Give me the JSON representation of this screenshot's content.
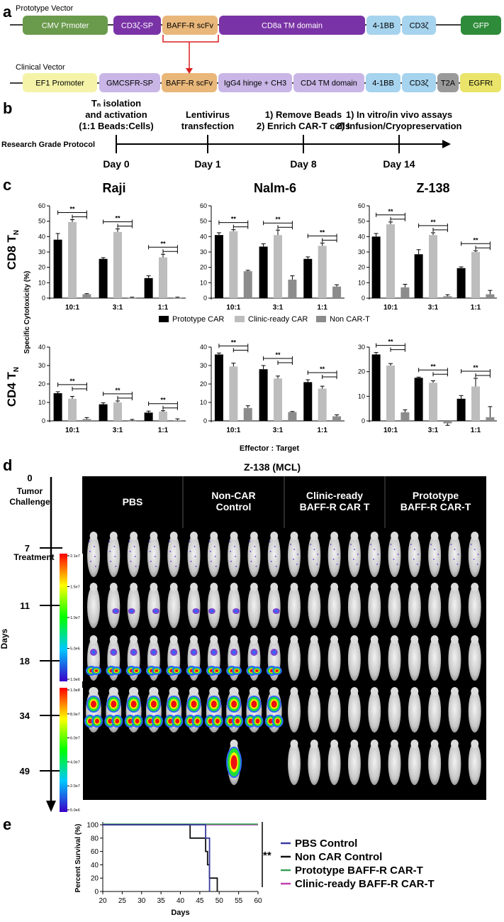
{
  "panel_a": {
    "letter": "a",
    "proto_label": "Prototype Vector",
    "clin_label": "Clinical Vector",
    "proto_segments": [
      {
        "label": "CMV Prmoter",
        "color": "#6a9a4c"
      },
      {
        "label": "CD3ζ-SP",
        "color": "#7a33a6"
      },
      {
        "label": "BAFF-R scFv",
        "color": "#e9b77a"
      },
      {
        "label": "CD8a TM domain",
        "color": "#7a33a6"
      },
      {
        "label": "4-1BB",
        "color": "#a6d3ee"
      },
      {
        "label": "CD3ζ",
        "color": "#a6d3ee"
      },
      {
        "label": "GFP",
        "color": "#2e8b3a"
      }
    ],
    "clin_segments": [
      {
        "label": "EF1 Promoter",
        "color": "#f4f3a8"
      },
      {
        "label": "GMCSFR-SP",
        "color": "#c9b6e6"
      },
      {
        "label": "BAFF-R scFv",
        "color": "#e9b77a"
      },
      {
        "label": "IgG4 hinge + CH3",
        "color": "#c9b6e6"
      },
      {
        "label": "CD4 TM domain",
        "color": "#c9b6e6"
      },
      {
        "label": "4-1BB",
        "color": "#a6d3ee"
      },
      {
        "label": "CD3ζ",
        "color": "#a6d3ee"
      },
      {
        "label": "T2A",
        "color": "#9a9a9a"
      },
      {
        "label": "EGFRt",
        "color": "#eae46a"
      }
    ]
  },
  "panel_b": {
    "letter": "b",
    "protocol_label": "Research Grade Protocol",
    "steps": [
      {
        "day": "Day 0",
        "lines": [
          "Tₙ isolation",
          "and activation",
          "(1:1 Beads:Cells)"
        ]
      },
      {
        "day": "Day 1",
        "lines": [
          "Lentivirus",
          "transfection"
        ]
      },
      {
        "day": "Day 8",
        "lines": [
          "1) Remove Beads",
          "2) Enrich CAR-T cells"
        ]
      },
      {
        "day": "Day 14",
        "lines": [
          "1) In vitro/in vivo assays",
          "2) Infusion/Cryopreservation"
        ]
      }
    ]
  },
  "panel_c": {
    "letter": "c",
    "ylabel": "Specific Cytotoxicity (%)",
    "xlabel": "Effector : Target",
    "row_labels": [
      "CD8 T",
      "CD4 T"
    ],
    "row_label_sub": "N",
    "col_titles": [
      "Raji",
      "Nalm-6",
      "Z-138"
    ],
    "sig_label": "**",
    "legend": [
      {
        "name": "Prototype CAR",
        "color": "#000000"
      },
      {
        "name": "Clinic-ready CAR",
        "color": "#bdbdbd"
      },
      {
        "name": "Non CAR-T",
        "color": "#8c8c8c"
      }
    ]
  },
  "chart_data": [
    {
      "type": "bar",
      "title": "Raji",
      "row": "CD8 TN",
      "categories": [
        "10:1",
        "3:1",
        "1:1"
      ],
      "ylim": [
        0,
        60
      ],
      "yticks": [
        0,
        10,
        20,
        30,
        40,
        50,
        60
      ],
      "series": [
        {
          "name": "Prototype CAR",
          "values": [
            38,
            25.5,
            13
          ],
          "err": [
            4,
            0.8,
            1.5
          ]
        },
        {
          "name": "Clinic-ready CAR",
          "values": [
            49.5,
            43,
            26.5
          ],
          "err": [
            1.5,
            2,
            2
          ]
        },
        {
          "name": "Non CAR-T",
          "values": [
            2.5,
            0.3,
            0.3
          ],
          "err": [
            0.4,
            0.3,
            0.3
          ]
        }
      ]
    },
    {
      "type": "bar",
      "title": "Nalm-6",
      "row": "CD8 TN",
      "categories": [
        "10:1",
        "3:1",
        "1:1"
      ],
      "ylim": [
        0,
        60
      ],
      "yticks": [
        0,
        10,
        20,
        30,
        40,
        50,
        60
      ],
      "series": [
        {
          "name": "Prototype CAR",
          "values": [
            41,
            33.5,
            25.5
          ],
          "err": [
            1.5,
            1.8,
            1.3
          ]
        },
        {
          "name": "Clinic-ready CAR",
          "values": [
            43.5,
            41,
            34
          ],
          "err": [
            1,
            3.2,
            1.8
          ]
        },
        {
          "name": "Non CAR-T",
          "values": [
            17.5,
            12,
            7.5
          ],
          "err": [
            0.6,
            2.5,
            1.2
          ]
        }
      ]
    },
    {
      "type": "bar",
      "title": "Z-138",
      "row": "CD8 TN",
      "categories": [
        "10:1",
        "3:1",
        "1:1"
      ],
      "ylim": [
        0,
        60
      ],
      "yticks": [
        0,
        10,
        20,
        30,
        40,
        50,
        60
      ],
      "series": [
        {
          "name": "Prototype CAR",
          "values": [
            40,
            28.5,
            19.5
          ],
          "err": [
            2,
            3,
            0.8
          ]
        },
        {
          "name": "Clinic-ready CAR",
          "values": [
            48,
            41,
            30
          ],
          "err": [
            1.5,
            1.5,
            0.8
          ]
        },
        {
          "name": "Non CAR-T",
          "values": [
            7,
            1.2,
            2.5
          ],
          "err": [
            2,
            1,
            2.5
          ]
        }
      ]
    },
    {
      "type": "bar",
      "title": "Raji",
      "row": "CD4 TN",
      "categories": [
        "10:1",
        "3:1",
        "1:1"
      ],
      "ylim": [
        0,
        40
      ],
      "yticks": [
        0,
        10,
        20,
        30,
        40
      ],
      "series": [
        {
          "name": "Prototype CAR",
          "values": [
            15,
            9,
            4.5
          ],
          "err": [
            0.8,
            0.8,
            0.8
          ]
        },
        {
          "name": "Clinic-ready CAR",
          "values": [
            12,
            10,
            5
          ],
          "err": [
            1.3,
            0.8,
            0.5
          ]
        },
        {
          "name": "Non CAR-T",
          "values": [
            1,
            0,
            0.3
          ],
          "err": [
            0.8,
            0.8,
            0.8
          ]
        }
      ]
    },
    {
      "type": "bar",
      "title": "Nalm-6",
      "row": "CD4 TN",
      "categories": [
        "10:1",
        "3:1",
        "1:1"
      ],
      "ylim": [
        0,
        40
      ],
      "yticks": [
        0,
        10,
        20,
        30,
        40
      ],
      "series": [
        {
          "name": "Prototype CAR",
          "values": [
            36,
            28,
            21
          ],
          "err": [
            0.8,
            2,
            1.3
          ]
        },
        {
          "name": "Clinic-ready CAR",
          "values": [
            29.5,
            23,
            17.5
          ],
          "err": [
            1.8,
            1.3,
            1.3
          ]
        },
        {
          "name": "Non CAR-T",
          "values": [
            7,
            4.8,
            2.5
          ],
          "err": [
            1.2,
            0.3,
            0.8
          ]
        }
      ]
    },
    {
      "type": "bar",
      "title": "Z-138",
      "row": "CD4 TN",
      "categories": [
        "10:1",
        "3:1",
        "1:1"
      ],
      "ylim": [
        0,
        30
      ],
      "yticks": [
        0,
        10,
        20,
        30
      ],
      "series": [
        {
          "name": "Prototype CAR",
          "values": [
            27,
            17.5,
            9
          ],
          "err": [
            0.8,
            0.3,
            1.3
          ]
        },
        {
          "name": "Clinic-ready CAR",
          "values": [
            22.5,
            15.5,
            14
          ],
          "err": [
            0.8,
            0.8,
            3.3
          ]
        },
        {
          "name": "Non CAR-T",
          "values": [
            3.5,
            -1,
            1.5
          ],
          "err": [
            1,
            0.8,
            4.3
          ]
        }
      ]
    },
    {
      "type": "line",
      "title": "",
      "xlabel": "Days",
      "ylabel": "Percent Survival (%)",
      "xlim": [
        20,
        60
      ],
      "ylim": [
        0,
        100
      ],
      "xticks": [
        20,
        25,
        30,
        35,
        40,
        45,
        50,
        55,
        60
      ],
      "yticks": [
        0,
        20,
        40,
        60,
        80,
        100
      ],
      "series": [
        {
          "name": "PBS Control",
          "color": "#3a3aa0",
          "x": [
            20,
            46.5,
            46.5,
            47.5,
            47.5
          ],
          "y": [
            100,
            100,
            80,
            80,
            0
          ]
        },
        {
          "name": "Non CAR Control",
          "color": "#111111",
          "x": [
            20,
            42.5,
            42.5,
            46.5,
            46.5,
            47,
            47,
            47.5,
            47.5,
            49.5,
            49.5
          ],
          "y": [
            100,
            100,
            80,
            80,
            60,
            60,
            40,
            40,
            20,
            20,
            0
          ]
        },
        {
          "name": "Prototype BAFF-R CAR-T",
          "color": "#3aa05a",
          "x": [
            20,
            60
          ],
          "y": [
            101,
            101
          ]
        },
        {
          "name": "Clinic-ready BAFF-R CAR-T",
          "color": "#c040b0",
          "x": [
            20,
            60
          ],
          "y": [
            100,
            100
          ]
        }
      ]
    }
  ],
  "panel_d": {
    "letter": "d",
    "title": "Z-138 (MCL)",
    "group_headers": [
      [
        "PBS"
      ],
      [
        "Non-CAR",
        "Control"
      ],
      [
        "Clinic-ready",
        "BAFF-R CAR T"
      ],
      [
        "Prototype",
        "BAFF-R CAR-T"
      ]
    ],
    "timeline_days": [
      "0",
      "7",
      "11",
      "18",
      "34",
      "49"
    ],
    "timeline_notes": {
      "0": [
        "Tumor",
        "Challenge"
      ],
      "7": [
        "Treatment"
      ]
    },
    "axis_label": "Days",
    "scale1_ticks": [
      "2.1e7",
      "1.5e7",
      "1.0e7",
      "5.0e6",
      "1.0e6"
    ],
    "scale2_ticks": [
      "1.0e8",
      "8.0e7",
      "6.0e7",
      "4.0e7",
      "2.0e7",
      "5.0e6"
    ]
  },
  "panel_e": {
    "letter": "e",
    "sig_label": "**"
  }
}
